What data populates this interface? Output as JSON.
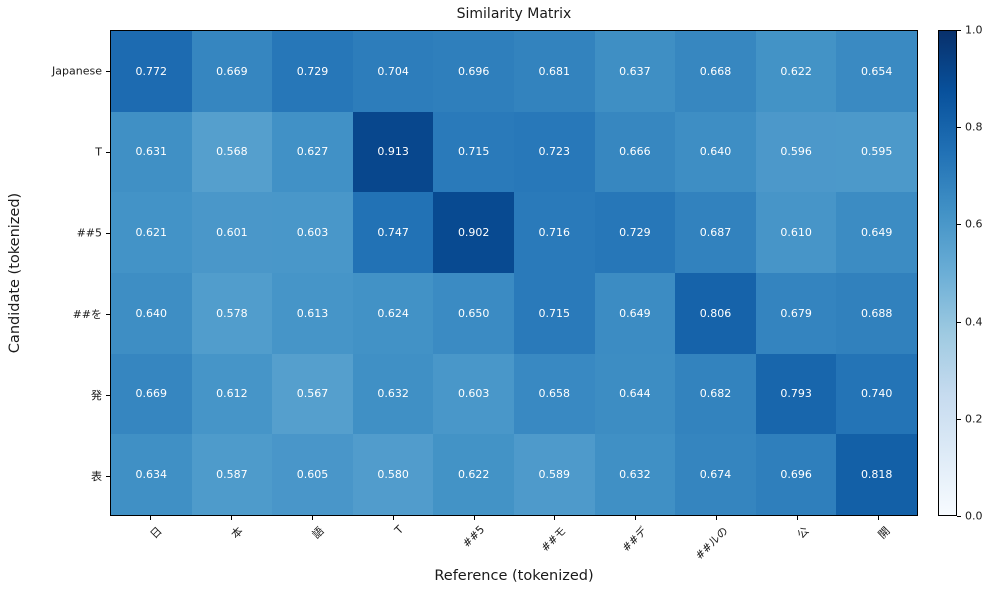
{
  "figure": {
    "background": "#ffffff",
    "text_color": "#1a1a1a",
    "spine_color": "#000000"
  },
  "chart_data": {
    "type": "heatmap",
    "title": "Similarity Matrix",
    "xlabel": "Reference (tokenized)",
    "ylabel": "Candidate (tokenized)",
    "x_categories": [
      "日",
      "本",
      "語",
      "T",
      "##5",
      "##モ",
      "##デ",
      "##ルの",
      "公",
      "開"
    ],
    "y_categories": [
      "Japanese",
      "T",
      "##5",
      "##を",
      "発",
      "表"
    ],
    "values": [
      [
        0.772,
        0.669,
        0.729,
        0.704,
        0.696,
        0.681,
        0.637,
        0.668,
        0.622,
        0.654
      ],
      [
        0.631,
        0.568,
        0.627,
        0.913,
        0.715,
        0.723,
        0.666,
        0.64,
        0.596,
        0.595
      ],
      [
        0.621,
        0.601,
        0.603,
        0.747,
        0.902,
        0.716,
        0.729,
        0.687,
        0.61,
        0.649
      ],
      [
        0.64,
        0.578,
        0.613,
        0.624,
        0.65,
        0.715,
        0.649,
        0.806,
        0.679,
        0.688
      ],
      [
        0.669,
        0.612,
        0.567,
        0.632,
        0.603,
        0.658,
        0.644,
        0.682,
        0.793,
        0.74
      ],
      [
        0.634,
        0.587,
        0.605,
        0.58,
        0.622,
        0.589,
        0.632,
        0.674,
        0.696,
        0.818
      ]
    ],
    "value_decimals": 3,
    "vmin": 0.0,
    "vmax": 1.0,
    "grid": false,
    "colormap": "Blues",
    "colormap_stops": [
      {
        "pos": 0.0,
        "color": "#f7fbff"
      },
      {
        "pos": 0.125,
        "color": "#deebf7"
      },
      {
        "pos": 0.25,
        "color": "#c6dbef"
      },
      {
        "pos": 0.375,
        "color": "#9ecae1"
      },
      {
        "pos": 0.5,
        "color": "#6baed6"
      },
      {
        "pos": 0.625,
        "color": "#4292c6"
      },
      {
        "pos": 0.75,
        "color": "#2171b5"
      },
      {
        "pos": 0.875,
        "color": "#08519c"
      },
      {
        "pos": 1.0,
        "color": "#08306b"
      }
    ],
    "cell_text_color": "#ffffff",
    "colorbar": {
      "position": "right",
      "tick_labels": [
        "0.0",
        "0.2",
        "0.4",
        "0.6",
        "0.8",
        "1.0"
      ],
      "tick_values": [
        0.0,
        0.2,
        0.4,
        0.6,
        0.8,
        1.0
      ]
    }
  }
}
